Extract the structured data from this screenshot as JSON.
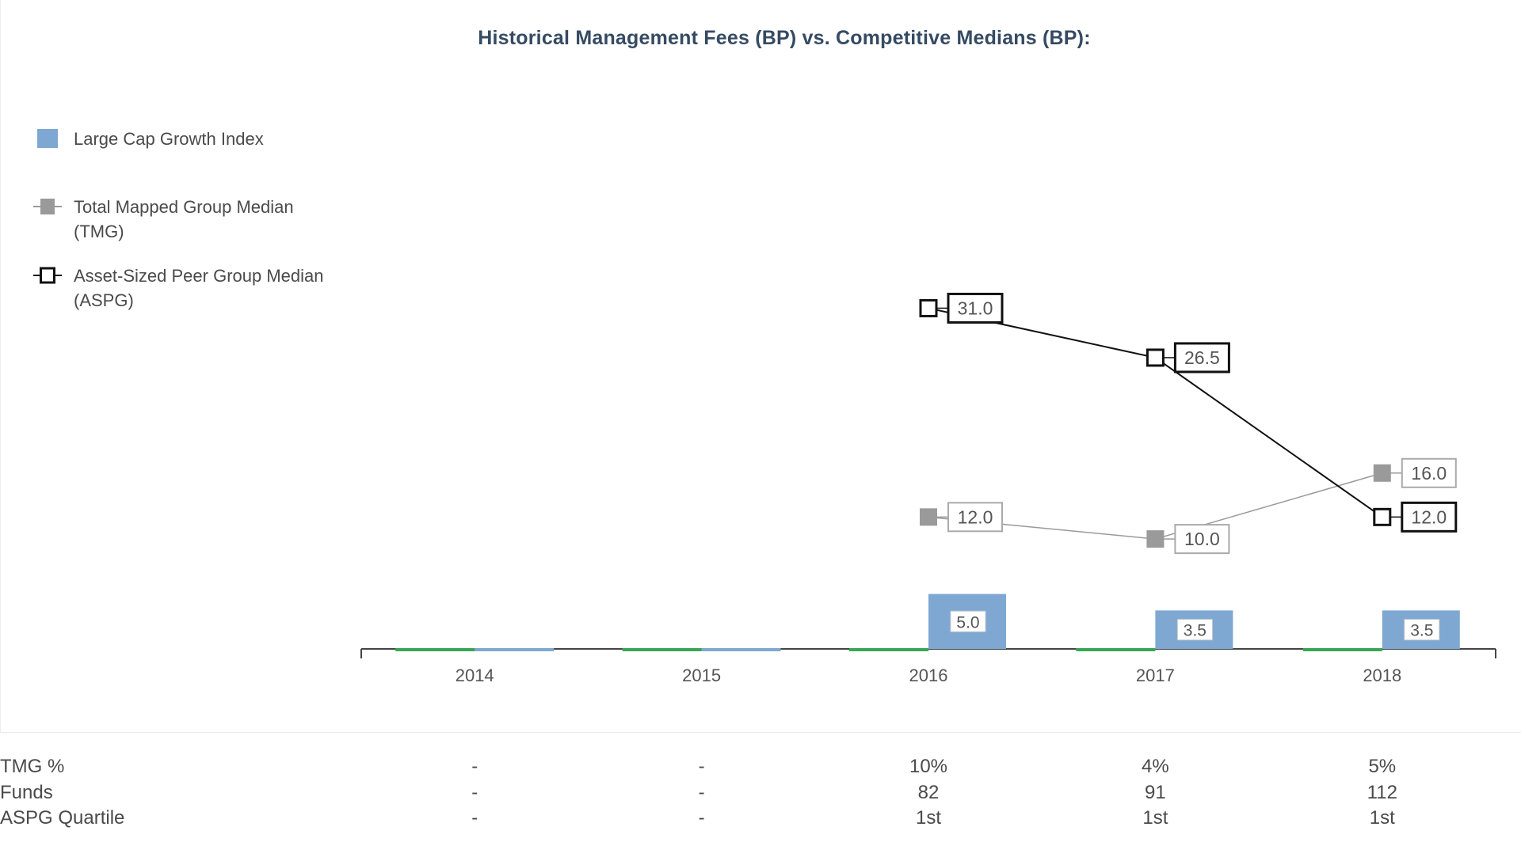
{
  "chart_data": {
    "type": "bar",
    "title": "Historical Management Fees (BP) vs. Competitive Medians (BP):",
    "categories": [
      "2014",
      "2015",
      "2016",
      "2017",
      "2018"
    ],
    "ylim": [
      0,
      36
    ],
    "grid": false,
    "legend_position": "left",
    "series": [
      {
        "name": "Large Cap Growth Index",
        "kind": "bar",
        "color": "#7ea8d2",
        "values": [
          0,
          0,
          5.0,
          3.5,
          3.5
        ]
      },
      {
        "name": "Total Mapped Group Median (TMG)",
        "kind": "line",
        "color": "#9a9a9a",
        "values": [
          null,
          null,
          12.0,
          10.0,
          16.0
        ]
      },
      {
        "name": "Asset-Sized Peer Group Median (ASPG)",
        "kind": "line",
        "color": "#111111",
        "values": [
          null,
          null,
          31.0,
          26.5,
          12.0
        ]
      }
    ],
    "baseline_color": "#3aa655",
    "bar_labels": [
      "",
      "",
      "5.0",
      "3.5",
      "3.5"
    ],
    "tmg_labels": [
      "",
      "",
      "12.0",
      "10.0",
      "16.0"
    ],
    "aspg_labels": [
      "",
      "",
      "31.0",
      "26.5",
      "12.0"
    ]
  },
  "legend": [
    {
      "label": "Large Cap Growth Index",
      "icon": "square-swatch-icon"
    },
    {
      "label": "Total Mapped Group Median (TMG)",
      "icon": "gray-square-line-icon"
    },
    {
      "label": "Asset-Sized Peer Group Median (ASPG)",
      "icon": "open-square-line-icon"
    }
  ],
  "table": {
    "rows": [
      {
        "label": "TMG %",
        "values": [
          "-",
          "-",
          "10%",
          "4%",
          "5%"
        ]
      },
      {
        "label": "Funds",
        "values": [
          "-",
          "-",
          "82",
          "91",
          "112"
        ]
      },
      {
        "label": "ASPG Quartile",
        "values": [
          "-",
          "-",
          "1st",
          "1st",
          "1st"
        ]
      }
    ]
  }
}
